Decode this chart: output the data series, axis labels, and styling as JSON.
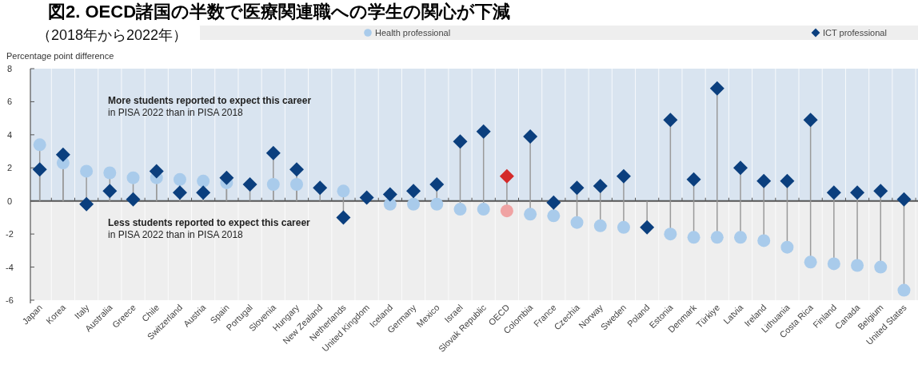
{
  "chart_data": {
    "type": "lollipop",
    "title": "図2. OECD諸国の半数で医療関連職への学生の関心が下減",
    "subtitle": "（2018年から2022年）",
    "ylabel": "Percentage point difference",
    "categories": [
      "Japan",
      "Korea",
      "Italy",
      "Australia",
      "Greece",
      "Chile",
      "Switzerland",
      "Austria",
      "Spain",
      "Portugal",
      "Slovenia",
      "Hungary",
      "New Zealand",
      "Netherlands",
      "United Kingdom",
      "Iceland",
      "Germany",
      "Mexico",
      "Israel",
      "Slovak Republic",
      "OECD",
      "Colombia",
      "France",
      "Czechia",
      "Norway",
      "Sweden",
      "Poland",
      "Estonia",
      "Denmark",
      "Türkiye",
      "Latvia",
      "Ireland",
      "Lithuania",
      "Costa Rica",
      "Finland",
      "Canada",
      "Belgium",
      "United States"
    ],
    "series": [
      {
        "name": "Health professional",
        "marker": "circle",
        "color": "#a9cbeb",
        "colors": [
          "#a9cbeb",
          "#a9cbeb",
          "#a9cbeb",
          "#a9cbeb",
          "#a9cbeb",
          "#a9cbeb",
          "#a9cbeb",
          "#a9cbeb",
          "#a9cbeb",
          "#a9cbeb",
          "#a9cbeb",
          "#a9cbeb",
          "#a9cbeb",
          "#a9cbeb",
          "#a9cbeb",
          "#a9cbeb",
          "#a9cbeb",
          "#a9cbeb",
          "#a9cbeb",
          "#a9cbeb",
          "#f0a3a3",
          "#a9cbeb",
          "#a9cbeb",
          "#a9cbeb",
          "#a9cbeb",
          "#a9cbeb",
          "#a9cbeb",
          "#a9cbeb",
          "#a9cbeb",
          "#a9cbeb",
          "#a9cbeb",
          "#a9cbeb",
          "#a9cbeb",
          "#a9cbeb",
          "#a9cbeb",
          "#a9cbeb",
          "#a9cbeb",
          "#a9cbeb"
        ],
        "values": [
          3.4,
          2.3,
          1.8,
          1.7,
          1.4,
          1.4,
          1.3,
          1.2,
          1.1,
          null,
          1.0,
          1.0,
          null,
          0.6,
          null,
          -0.2,
          -0.2,
          -0.2,
          -0.5,
          -0.5,
          -0.6,
          -0.8,
          -0.9,
          -1.3,
          -1.5,
          -1.6,
          null,
          -2.0,
          -2.2,
          -2.2,
          -2.2,
          -2.4,
          -2.8,
          -3.7,
          -3.8,
          -3.9,
          -4.0,
          -5.4
        ]
      },
      {
        "name": "ICT professional",
        "marker": "diamond",
        "color": "#0b3f7e",
        "colors": [
          "#0b3f7e",
          "#0b3f7e",
          "#0b3f7e",
          "#0b3f7e",
          "#0b3f7e",
          "#0b3f7e",
          "#0b3f7e",
          "#0b3f7e",
          "#0b3f7e",
          "#0b3f7e",
          "#0b3f7e",
          "#0b3f7e",
          "#0b3f7e",
          "#0b3f7e",
          "#0b3f7e",
          "#0b3f7e",
          "#0b3f7e",
          "#0b3f7e",
          "#0b3f7e",
          "#0b3f7e",
          "#d42a2a",
          "#0b3f7e",
          "#0b3f7e",
          "#0b3f7e",
          "#0b3f7e",
          "#0b3f7e",
          "#0b3f7e",
          "#0b3f7e",
          "#0b3f7e",
          "#0b3f7e",
          "#0b3f7e",
          "#0b3f7e",
          "#0b3f7e",
          "#0b3f7e",
          "#0b3f7e",
          "#0b3f7e",
          "#0b3f7e",
          "#0b3f7e"
        ],
        "values": [
          1.9,
          2.8,
          -0.2,
          0.6,
          0.1,
          1.8,
          0.5,
          0.5,
          1.4,
          1.0,
          2.9,
          1.9,
          0.8,
          -1.0,
          0.2,
          0.4,
          0.6,
          1.0,
          3.6,
          4.2,
          1.5,
          3.9,
          -0.1,
          0.8,
          0.9,
          1.5,
          -1.6,
          4.9,
          1.3,
          6.8,
          2.0,
          1.2,
          1.2,
          4.9,
          0.5,
          0.5,
          0.6,
          0.1
        ]
      }
    ],
    "ylim": [
      -6,
      8
    ],
    "yticks": [
      -6,
      -4,
      -2,
      0,
      2,
      4,
      6,
      8
    ],
    "bands": [
      {
        "axis": "y",
        "from": 0,
        "to": 8,
        "color": "#d9e4f0",
        "label": "**More students reported to expect this career** in PISA 2022 than in PISA 2018"
      },
      {
        "axis": "y",
        "from": -6,
        "to": 0,
        "color": "#eeeeee",
        "label": "**Less students reported to expect this career** in PISA 2022 than in PISA 2018"
      }
    ],
    "legend": "top",
    "grid": "x"
  }
}
